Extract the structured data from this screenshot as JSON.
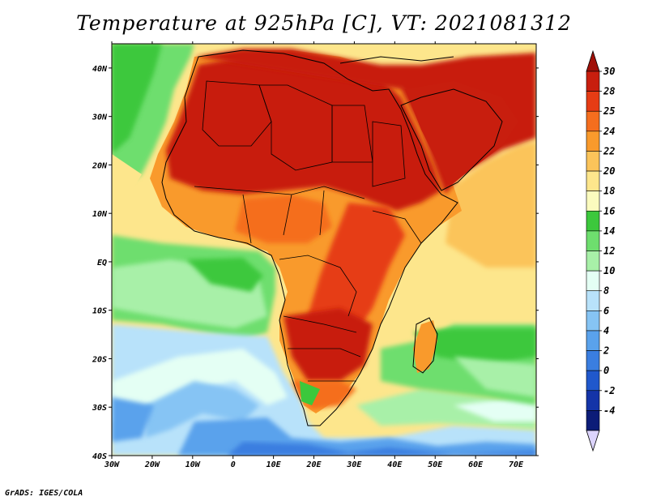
{
  "title": "Temperature at 925hPa [C], VT: 2021081312",
  "credit": "GrADS: IGES/COLA",
  "map": {
    "lat_ticks": [
      "40N",
      "30N",
      "20N",
      "10N",
      "EQ",
      "10S",
      "20S",
      "30S",
      "40S"
    ],
    "lon_ticks": [
      "30W",
      "20W",
      "10W",
      "0",
      "10E",
      "20E",
      "30E",
      "40E",
      "50E",
      "60E",
      "70E"
    ],
    "lon_range": [
      -30,
      75
    ],
    "lat_range": [
      -40,
      45
    ]
  },
  "colorbar": {
    "labels": [
      "30",
      "28",
      "25",
      "24",
      "22",
      "20",
      "18",
      "16",
      "14",
      "12",
      "10",
      "8",
      "6",
      "4",
      "2",
      "0",
      "-2",
      "-4"
    ],
    "colors": [
      "#c81e0e",
      "#e63c14",
      "#f56e1e",
      "#f99a2c",
      "#fbc45a",
      "#fde68c",
      "#fbfbbe",
      "#3cc83c",
      "#6ede6e",
      "#a8f0a8",
      "#e4fff4",
      "#b8e2fa",
      "#86c4f4",
      "#5aa2ec",
      "#3a7ee0",
      "#2058cc",
      "#1434a8",
      "#0c1c78"
    ],
    "over_color": "#a01008",
    "under_color": "#dcd4fc"
  }
}
